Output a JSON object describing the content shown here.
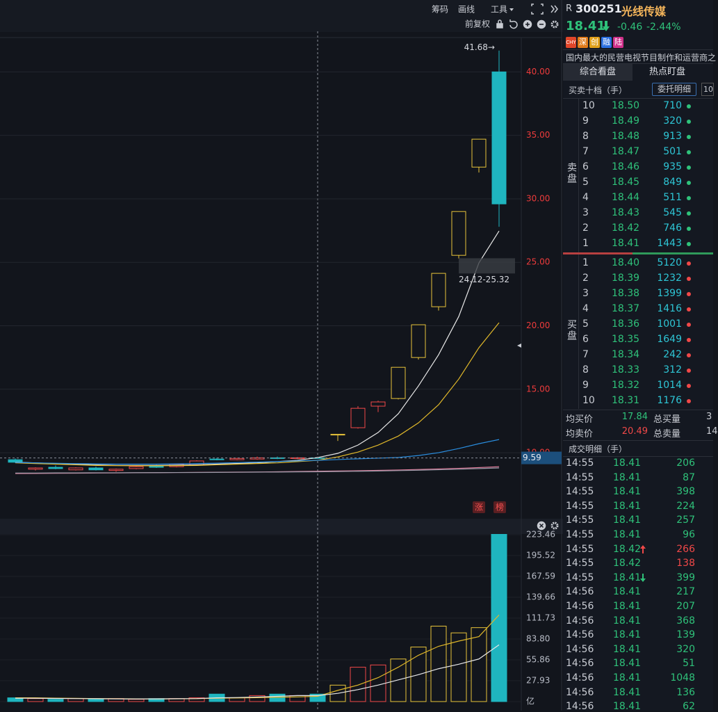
{
  "toolbar": {
    "items": [
      "筹码",
      "画线",
      "工具"
    ],
    "adjust": "前复权"
  },
  "stock": {
    "prefix": "R",
    "code": "300251",
    "name": "光线传媒",
    "price": "18.41",
    "change": "-0.46",
    "pct": "-2.44%",
    "tags": [
      {
        "text": "CHY",
        "color": "#e0462a"
      },
      {
        "text": "深",
        "color": "#e07b1a"
      },
      {
        "text": "创",
        "color": "#e0a01a"
      },
      {
        "text": "融",
        "color": "#2a6fe0"
      },
      {
        "text": "陆",
        "color": "#d0308a"
      }
    ],
    "description": "国内最大的民营电视节目制作和运营商之"
  },
  "tabs": [
    "综合看盘",
    "热点盯盘"
  ],
  "order_book": {
    "title": "买卖十档（手）",
    "button": "委托明细",
    "depth": "10",
    "sell_label": "卖盘",
    "buy_label": "买盘",
    "asks": [
      {
        "level": "10",
        "price": "18.50",
        "volume": "710"
      },
      {
        "level": "9",
        "price": "18.49",
        "volume": "320"
      },
      {
        "level": "8",
        "price": "18.48",
        "volume": "913"
      },
      {
        "level": "7",
        "price": "18.47",
        "volume": "501"
      },
      {
        "level": "6",
        "price": "18.46",
        "volume": "935"
      },
      {
        "level": "5",
        "price": "18.45",
        "volume": "849"
      },
      {
        "level": "4",
        "price": "18.44",
        "volume": "511"
      },
      {
        "level": "3",
        "price": "18.43",
        "volume": "545"
      },
      {
        "level": "2",
        "price": "18.42",
        "volume": "746"
      },
      {
        "level": "1",
        "price": "18.41",
        "volume": "1443"
      }
    ],
    "bids": [
      {
        "level": "1",
        "price": "18.40",
        "volume": "5120"
      },
      {
        "level": "2",
        "price": "18.39",
        "volume": "1232"
      },
      {
        "level": "3",
        "price": "18.38",
        "volume": "1399"
      },
      {
        "level": "4",
        "price": "18.37",
        "volume": "1416"
      },
      {
        "level": "5",
        "price": "18.36",
        "volume": "1001"
      },
      {
        "level": "6",
        "price": "18.35",
        "volume": "1649"
      },
      {
        "level": "7",
        "price": "18.34",
        "volume": "242"
      },
      {
        "level": "8",
        "price": "18.33",
        "volume": "312"
      },
      {
        "level": "9",
        "price": "18.32",
        "volume": "1014"
      },
      {
        "level": "10",
        "price": "18.31",
        "volume": "1176"
      }
    ]
  },
  "summary": [
    {
      "label": "均买价",
      "value": "17.84",
      "total_label": "总买量",
      "total": "3"
    },
    {
      "label": "均卖价",
      "value": "20.49",
      "total_label": "总卖量",
      "total": "14"
    }
  ],
  "trades": {
    "title": "成交明细（手）",
    "rows": [
      {
        "time": "14:55",
        "price": "18.41",
        "volume": "206",
        "color": "#2fc27a"
      },
      {
        "time": "14:55",
        "price": "18.41",
        "volume": "87",
        "color": "#2fc27a"
      },
      {
        "time": "14:55",
        "price": "18.41",
        "volume": "398",
        "color": "#2fc27a"
      },
      {
        "time": "14:55",
        "price": "18.41",
        "volume": "224",
        "color": "#2fc27a"
      },
      {
        "time": "14:55",
        "price": "18.41",
        "volume": "257",
        "color": "#2fc27a"
      },
      {
        "time": "14:55",
        "price": "18.41",
        "volume": "96",
        "color": "#2fc27a"
      },
      {
        "time": "14:55",
        "price": "18.42",
        "volume": "266",
        "color": "#f04848"
      },
      {
        "time": "14:55",
        "price": "18.42",
        "volume": "138",
        "color": "#f04848"
      },
      {
        "time": "14:55",
        "price": "18.41",
        "volume": "399",
        "color": "#2fc27a"
      },
      {
        "time": "14:56",
        "price": "18.41",
        "volume": "217",
        "color": "#2fc27a"
      },
      {
        "time": "14:56",
        "price": "18.41",
        "volume": "207",
        "color": "#2fc27a"
      },
      {
        "time": "14:56",
        "price": "18.41",
        "volume": "368",
        "color": "#2fc27a"
      },
      {
        "time": "14:56",
        "price": "18.41",
        "volume": "139",
        "color": "#2fc27a"
      },
      {
        "time": "14:56",
        "price": "18.41",
        "volume": "320",
        "color": "#2fc27a"
      },
      {
        "time": "14:56",
        "price": "18.41",
        "volume": "51",
        "color": "#2fc27a"
      },
      {
        "time": "14:56",
        "price": "18.41",
        "volume": "1048",
        "color": "#2fc27a"
      },
      {
        "time": "14:56",
        "price": "18.41",
        "volume": "136",
        "color": "#2fc27a"
      },
      {
        "time": "14:56",
        "price": "18.41",
        "volume": "62",
        "color": "#2fc27a"
      }
    ]
  },
  "badges": [
    "涨",
    "榜"
  ],
  "chart_data": [
    {
      "type": "candlestick",
      "ylim": [
        5.13,
        42.65
      ],
      "yticks": [
        {
          "value": 10,
          "label": "10.00"
        },
        {
          "value": 15,
          "label": "15.00"
        },
        {
          "value": 20,
          "label": "20.00"
        },
        {
          "value": 25,
          "label": "25.00"
        },
        {
          "value": 30,
          "label": "30.00"
        },
        {
          "value": 35,
          "label": "35.00"
        },
        {
          "value": 40,
          "label": "40.00"
        }
      ],
      "grid": true,
      "candles": [
        {
          "open": 9.45,
          "high": 9.55,
          "low": 9.2,
          "close": 9.25,
          "color": "#1fb5bf"
        },
        {
          "open": 8.7,
          "high": 8.85,
          "low": 8.6,
          "close": 8.8,
          "color": "#f04848"
        },
        {
          "open": 8.85,
          "high": 9.0,
          "low": 8.7,
          "close": 8.75,
          "color": "#1fb5bf"
        },
        {
          "open": 8.65,
          "high": 8.85,
          "low": 8.6,
          "close": 8.8,
          "color": "#f04848"
        },
        {
          "open": 8.8,
          "high": 8.9,
          "low": 8.6,
          "close": 8.65,
          "color": "#1fb5bf"
        },
        {
          "open": 8.6,
          "high": 8.75,
          "low": 8.5,
          "close": 8.7,
          "color": "#f04848"
        },
        {
          "open": 8.75,
          "high": 8.95,
          "low": 8.7,
          "close": 8.9,
          "color": "#f04848"
        },
        {
          "open": 8.95,
          "high": 9.05,
          "low": 8.8,
          "close": 8.85,
          "color": "#1fb5bf"
        },
        {
          "open": 8.9,
          "high": 9.15,
          "low": 8.85,
          "close": 9.1,
          "color": "#f04848"
        },
        {
          "open": 9.05,
          "high": 9.4,
          "low": 9.0,
          "close": 9.35,
          "color": "#f04848"
        },
        {
          "open": 9.5,
          "high": 9.6,
          "low": 9.4,
          "close": 9.45,
          "color": "#1fb5bf"
        },
        {
          "open": 9.45,
          "high": 9.6,
          "low": 9.4,
          "close": 9.55,
          "color": "#f04848"
        },
        {
          "open": 9.5,
          "high": 9.7,
          "low": 9.45,
          "close": 9.6,
          "color": "#f04848"
        },
        {
          "open": 9.6,
          "high": 9.7,
          "low": 9.5,
          "close": 9.55,
          "color": "#1fb5bf"
        },
        {
          "open": 9.55,
          "high": 9.65,
          "low": 9.5,
          "close": 9.6,
          "color": "#f04848"
        },
        {
          "open": 9.6,
          "high": 9.65,
          "low": 9.5,
          "close": 9.55,
          "color": "#1fb5bf"
        },
        {
          "open": 11.42,
          "high": 11.45,
          "low": 10.93,
          "close": 11.45,
          "color": "#e8c43a"
        },
        {
          "open": 11.97,
          "high": 13.67,
          "low": 11.9,
          "close": 13.5,
          "color": "#f04848"
        },
        {
          "open": 13.67,
          "high": 14.1,
          "low": 13.2,
          "close": 14.0,
          "color": "#f04848"
        },
        {
          "open": 14.27,
          "high": 16.73,
          "low": 14.2,
          "close": 16.73,
          "color": "#e8c43a"
        },
        {
          "open": 17.5,
          "high": 20.08,
          "low": 17.34,
          "close": 20.08,
          "color": "#e8c43a"
        },
        {
          "open": 21.5,
          "high": 24.13,
          "low": 21.2,
          "close": 24.13,
          "color": "#e8c43a"
        },
        {
          "open": 25.55,
          "high": 29.0,
          "low": 25.3,
          "close": 29.0,
          "color": "#e8c43a"
        },
        {
          "open": 32.5,
          "high": 34.7,
          "low": 32.07,
          "close": 34.7,
          "color": "#e8c43a"
        },
        {
          "open": 40.0,
          "high": 41.68,
          "low": 27.8,
          "close": 29.6,
          "color": "#1fb5bf"
        }
      ],
      "series": [
        {
          "color": "#e8e8e8",
          "values": [
            9.25,
            9.2,
            9.15,
            9.1,
            9.05,
            9.0,
            9.0,
            9.0,
            9.02,
            9.05,
            9.1,
            9.15,
            9.2,
            9.3,
            9.4,
            9.62,
            9.95,
            10.6,
            11.59,
            13.07,
            15.26,
            17.72,
            20.73,
            24.95,
            27.47
          ]
        },
        {
          "color": "#e0b82a",
          "values": [
            9.2,
            9.15,
            9.1,
            9.05,
            9.0,
            8.98,
            8.97,
            8.97,
            8.98,
            9.0,
            9.05,
            9.1,
            9.15,
            9.2,
            9.3,
            9.4,
            9.67,
            10.05,
            10.6,
            11.31,
            12.35,
            13.78,
            15.8,
            18.27,
            20.24
          ]
        },
        {
          "color": "#2a8ee0",
          "values": [
            9.23,
            9.2,
            9.17,
            9.14,
            9.12,
            9.1,
            9.1,
            9.1,
            9.12,
            9.15,
            9.18,
            9.22,
            9.26,
            9.3,
            9.35,
            9.4,
            9.46,
            9.52,
            9.57,
            9.62,
            9.78,
            10.0,
            10.33,
            10.71,
            11.04
          ]
        },
        {
          "color": "#e07a9a",
          "values": [
            8.36,
            8.37,
            8.38,
            8.39,
            8.4,
            8.41,
            8.42,
            8.43,
            8.44,
            8.45,
            8.46,
            8.47,
            8.48,
            8.5,
            8.52,
            8.54,
            8.56,
            8.58,
            8.61,
            8.64,
            8.68,
            8.72,
            8.77,
            8.83,
            8.9
          ]
        },
        {
          "color": "#9a9aa8",
          "values": [
            8.4,
            8.4,
            8.41,
            8.41,
            8.42,
            8.42,
            8.43,
            8.43,
            8.44,
            8.44,
            8.45,
            8.46,
            8.47,
            8.48,
            8.49,
            8.5,
            8.52,
            8.54,
            8.56,
            8.59,
            8.62,
            8.66,
            8.7,
            8.75,
            8.8
          ]
        }
      ],
      "high_label": "41.68→",
      "range_label": "24.12-25.32",
      "range": [
        24.12,
        25.32
      ],
      "ref_line": {
        "value": 9.59,
        "label": "9.59"
      }
    },
    {
      "type": "bar",
      "ylim": [
        -8.4,
        224.4
      ],
      "yticks": [
        {
          "value": 0,
          "label": "亿"
        },
        27.93,
        55.86,
        83.8,
        111.73,
        139.66,
        167.59,
        195.52,
        223.46
      ],
      "yticks_fmt": [
        {
          "value": 83.8,
          "label": "83.80"
        }
      ],
      "values": [
        5,
        4,
        3,
        4,
        3,
        4,
        3,
        4,
        4,
        5,
        10,
        5,
        8,
        10,
        8,
        10,
        22,
        46,
        49,
        57,
        73,
        101,
        92,
        99,
        230
      ],
      "colors": [
        "#1fb5bf",
        "#f04848",
        "#1fb5bf",
        "#f04848",
        "#1fb5bf",
        "#f04848",
        "#f04848",
        "#1fb5bf",
        "#f04848",
        "#f04848",
        "#1fb5bf",
        "#f04848",
        "#f04848",
        "#1fb5bf",
        "#f04848",
        "#1fb5bf",
        "#e8c43a",
        "#f04848",
        "#f04848",
        "#e8c43a",
        "#e8c43a",
        "#e8c43a",
        "#e8c43a",
        "#e8c43a",
        "#1fb5bf"
      ],
      "hollow": [
        false,
        true,
        false,
        true,
        false,
        true,
        true,
        false,
        true,
        true,
        false,
        true,
        true,
        false,
        true,
        false,
        true,
        true,
        true,
        true,
        true,
        true,
        true,
        true,
        false
      ],
      "series": [
        {
          "color": "#e0b82a",
          "values": [
            5,
            5,
            4.5,
            4.3,
            4,
            3.8,
            3.6,
            3.6,
            3.7,
            3.9,
            4.5,
            4.8,
            5.2,
            5.7,
            6.2,
            7,
            15,
            22,
            32,
            46,
            62,
            74,
            81,
            87,
            116
          ]
        },
        {
          "color": "#e8e8e8",
          "values": [
            4.5,
            4.4,
            4.2,
            4,
            3.8,
            3.6,
            3.5,
            3.6,
            3.8,
            4,
            5,
            5.4,
            6,
            7,
            8,
            8,
            11,
            16,
            22,
            29,
            36,
            44,
            50,
            57,
            76
          ]
        }
      ]
    }
  ]
}
